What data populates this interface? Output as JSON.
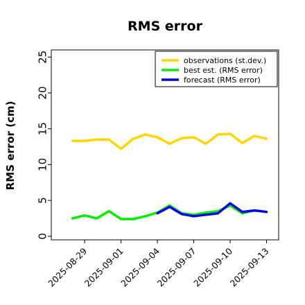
{
  "chart_data": {
    "type": "line",
    "title": "RMS error",
    "xlabel": "",
    "ylabel": "RMS error (cm)",
    "ylim": [
      -0.5,
      26
    ],
    "xlim": [
      "2025-08-26T06:00",
      "2025-09-14T00:00"
    ],
    "grid": false,
    "legend_position": "top-right",
    "yticks": [
      0,
      5,
      10,
      15,
      20,
      25
    ],
    "ytick_labels": [
      "0",
      "5",
      "10",
      "15",
      "20",
      "25"
    ],
    "xticks": [
      "2025-08-29",
      "2025-09-01",
      "2025-09-04",
      "2025-09-07",
      "2025-09-10",
      "2025-09-13"
    ],
    "xtick_labels": [
      "2025-08-29",
      "2025-09-01",
      "2025-09-04",
      "2025-09-07",
      "2025-09-10",
      "2025-09-13"
    ],
    "xtick_colors": [
      "#000000",
      "#000000",
      "#228b22",
      "#000000",
      "#000000",
      "#000000"
    ],
    "series": [
      {
        "name": "observations (st.dev.)",
        "color": "#ffd700",
        "x": [
          "2025-08-28",
          "2025-08-29",
          "2025-08-30",
          "2025-08-31",
          "2025-09-01",
          "2025-09-02",
          "2025-09-03",
          "2025-09-04",
          "2025-09-05",
          "2025-09-06",
          "2025-09-07",
          "2025-09-08",
          "2025-09-09",
          "2025-09-10",
          "2025-09-11",
          "2025-09-12",
          "2025-09-13"
        ],
        "values": [
          13.3,
          13.3,
          13.5,
          13.5,
          12.2,
          13.6,
          14.2,
          13.8,
          12.9,
          13.7,
          13.8,
          12.9,
          14.2,
          14.3,
          13.0,
          14.0,
          13.6
        ]
      },
      {
        "name": "best est. (RMS error)",
        "color": "#00ee00",
        "x": [
          "2025-08-28",
          "2025-08-29",
          "2025-08-30",
          "2025-08-31",
          "2025-09-01",
          "2025-09-02",
          "2025-09-03",
          "2025-09-04",
          "2025-09-05",
          "2025-09-06",
          "2025-09-07",
          "2025-09-08",
          "2025-09-09",
          "2025-09-10",
          "2025-09-11",
          "2025-09-12",
          "2025-09-13"
        ],
        "values": [
          2.5,
          2.9,
          2.5,
          3.5,
          2.4,
          2.4,
          2.8,
          3.3,
          4.3,
          3.2,
          3.0,
          3.3,
          3.5,
          4.3,
          3.2,
          3.6,
          3.4
        ]
      },
      {
        "name": "forecast (RMS error)",
        "color": "#0000ee",
        "x": [
          "2025-09-04",
          "2025-09-05",
          "2025-09-06",
          "2025-09-07",
          "2025-09-08",
          "2025-09-09",
          "2025-09-10",
          "2025-09-11",
          "2025-09-12",
          "2025-09-13"
        ],
        "values": [
          3.2,
          4.1,
          3.1,
          2.8,
          3.0,
          3.2,
          4.6,
          3.4,
          3.6,
          3.4
        ]
      }
    ]
  }
}
